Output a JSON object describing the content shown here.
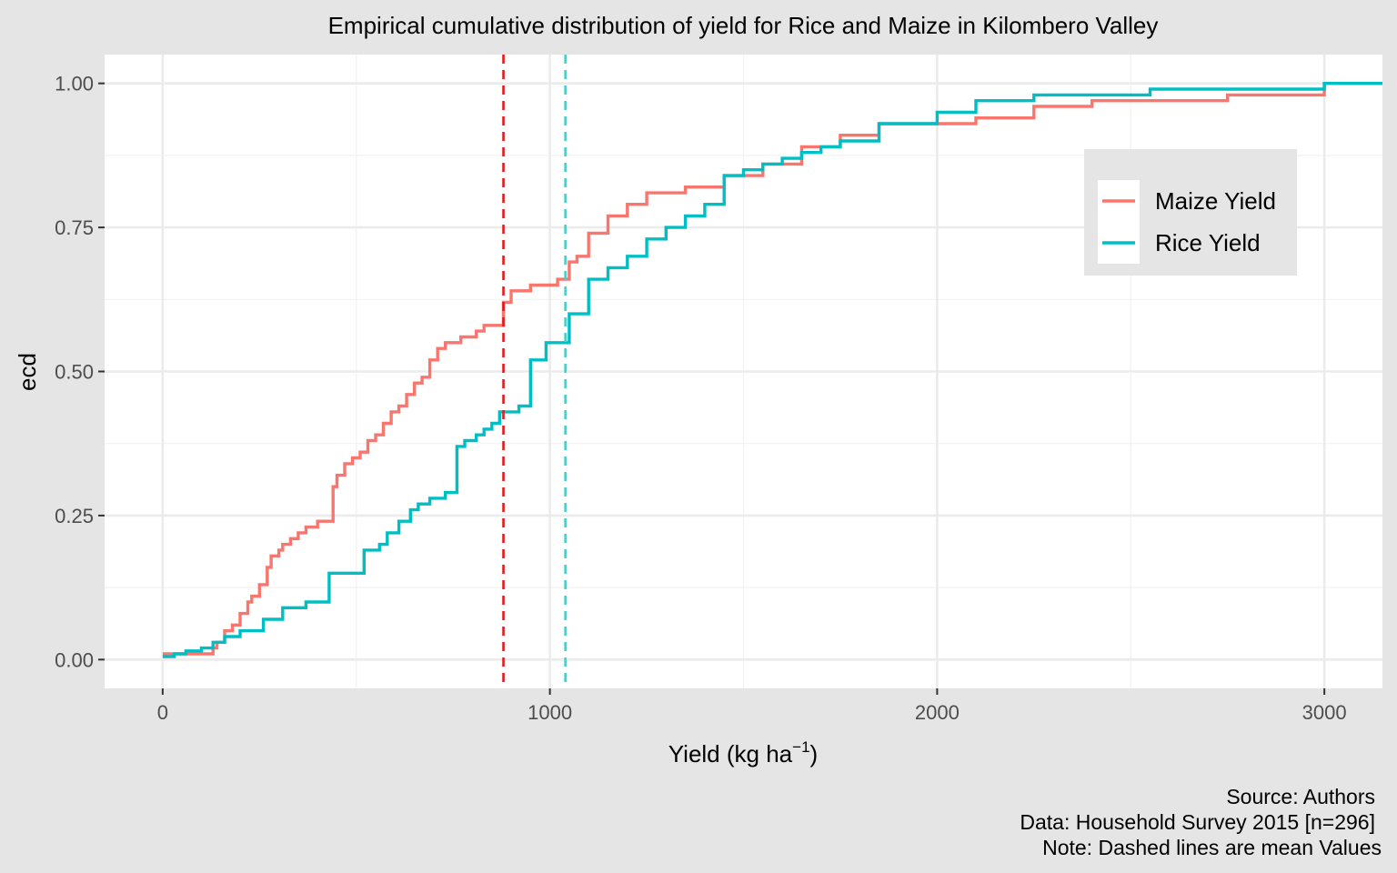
{
  "chart_data": {
    "type": "line",
    "title": "Empirical cumulative distribution of yield for Rice and Maize in Kilombero Valley",
    "xlabel": "Yield (kg ha",
    "xlabel_sup": "−1",
    "xlabel_close": ")",
    "ylabel": "ecd",
    "xlim": [
      -150,
      3150
    ],
    "ylim": [
      -0.05,
      1.05
    ],
    "x_ticks": [
      0,
      1000,
      2000,
      3000
    ],
    "x_tick_labels": [
      "0",
      "1000",
      "2000",
      "3000"
    ],
    "y_ticks": [
      0,
      0.25,
      0.5,
      0.75,
      1.0
    ],
    "y_tick_labels": [
      "0.00",
      "0.25",
      "0.50",
      "0.75",
      "1.00"
    ],
    "grid": true,
    "legend_position": "right",
    "series": [
      {
        "name": "Maize Yield",
        "color": "#f8766d",
        "x": [
          0,
          130,
          140,
          160,
          180,
          200,
          220,
          230,
          250,
          270,
          280,
          300,
          310,
          330,
          350,
          370,
          400,
          440,
          450,
          470,
          490,
          510,
          530,
          550,
          570,
          590,
          610,
          630,
          650,
          670,
          690,
          710,
          730,
          750,
          770,
          790,
          810,
          830,
          850,
          880,
          900,
          950,
          1000,
          1020,
          1050,
          1070,
          1100,
          1150,
          1200,
          1250,
          1350,
          1450,
          1550,
          1650,
          1750,
          1850,
          2000,
          2100,
          2250,
          2400,
          2550,
          2750,
          3000,
          3150
        ],
        "y": [
          0.01,
          0.02,
          0.03,
          0.05,
          0.06,
          0.08,
          0.1,
          0.11,
          0.13,
          0.16,
          0.18,
          0.19,
          0.2,
          0.21,
          0.22,
          0.23,
          0.24,
          0.3,
          0.32,
          0.34,
          0.35,
          0.36,
          0.38,
          0.39,
          0.41,
          0.43,
          0.44,
          0.46,
          0.48,
          0.49,
          0.52,
          0.54,
          0.55,
          0.55,
          0.56,
          0.56,
          0.57,
          0.58,
          0.58,
          0.62,
          0.64,
          0.65,
          0.65,
          0.66,
          0.69,
          0.7,
          0.74,
          0.77,
          0.79,
          0.81,
          0.82,
          0.84,
          0.86,
          0.89,
          0.91,
          0.93,
          0.93,
          0.94,
          0.96,
          0.97,
          0.97,
          0.98,
          1.0,
          1.0
        ]
      },
      {
        "name": "Rice Yield",
        "color": "#00bfc4",
        "x": [
          0,
          30,
          60,
          100,
          130,
          160,
          200,
          260,
          310,
          370,
          430,
          460,
          520,
          560,
          580,
          610,
          640,
          660,
          690,
          730,
          760,
          780,
          810,
          830,
          850,
          870,
          920,
          950,
          990,
          1050,
          1100,
          1150,
          1200,
          1250,
          1300,
          1350,
          1400,
          1450,
          1500,
          1550,
          1600,
          1650,
          1700,
          1750,
          1800,
          1850,
          2000,
          2100,
          2250,
          2400,
          2550,
          2750,
          3000,
          3150
        ],
        "y": [
          0.005,
          0.01,
          0.015,
          0.02,
          0.03,
          0.04,
          0.05,
          0.07,
          0.09,
          0.1,
          0.15,
          0.15,
          0.19,
          0.2,
          0.22,
          0.24,
          0.26,
          0.27,
          0.28,
          0.29,
          0.37,
          0.38,
          0.39,
          0.4,
          0.41,
          0.43,
          0.44,
          0.52,
          0.55,
          0.6,
          0.66,
          0.68,
          0.7,
          0.73,
          0.75,
          0.77,
          0.79,
          0.84,
          0.85,
          0.86,
          0.87,
          0.88,
          0.89,
          0.9,
          0.9,
          0.93,
          0.95,
          0.97,
          0.98,
          0.98,
          0.99,
          0.99,
          1.0,
          1.0
        ]
      }
    ],
    "mean_lines": [
      {
        "series": "Maize Yield",
        "x": 880,
        "color": "#e41a1c"
      },
      {
        "series": "Rice Yield",
        "x": 1040,
        "color": "#4ecdc4"
      }
    ],
    "caption": [
      "Source: Authors",
      "Data: Household Survey 2015 [n=296]",
      "Note: Dashed lines are mean Values"
    ]
  }
}
